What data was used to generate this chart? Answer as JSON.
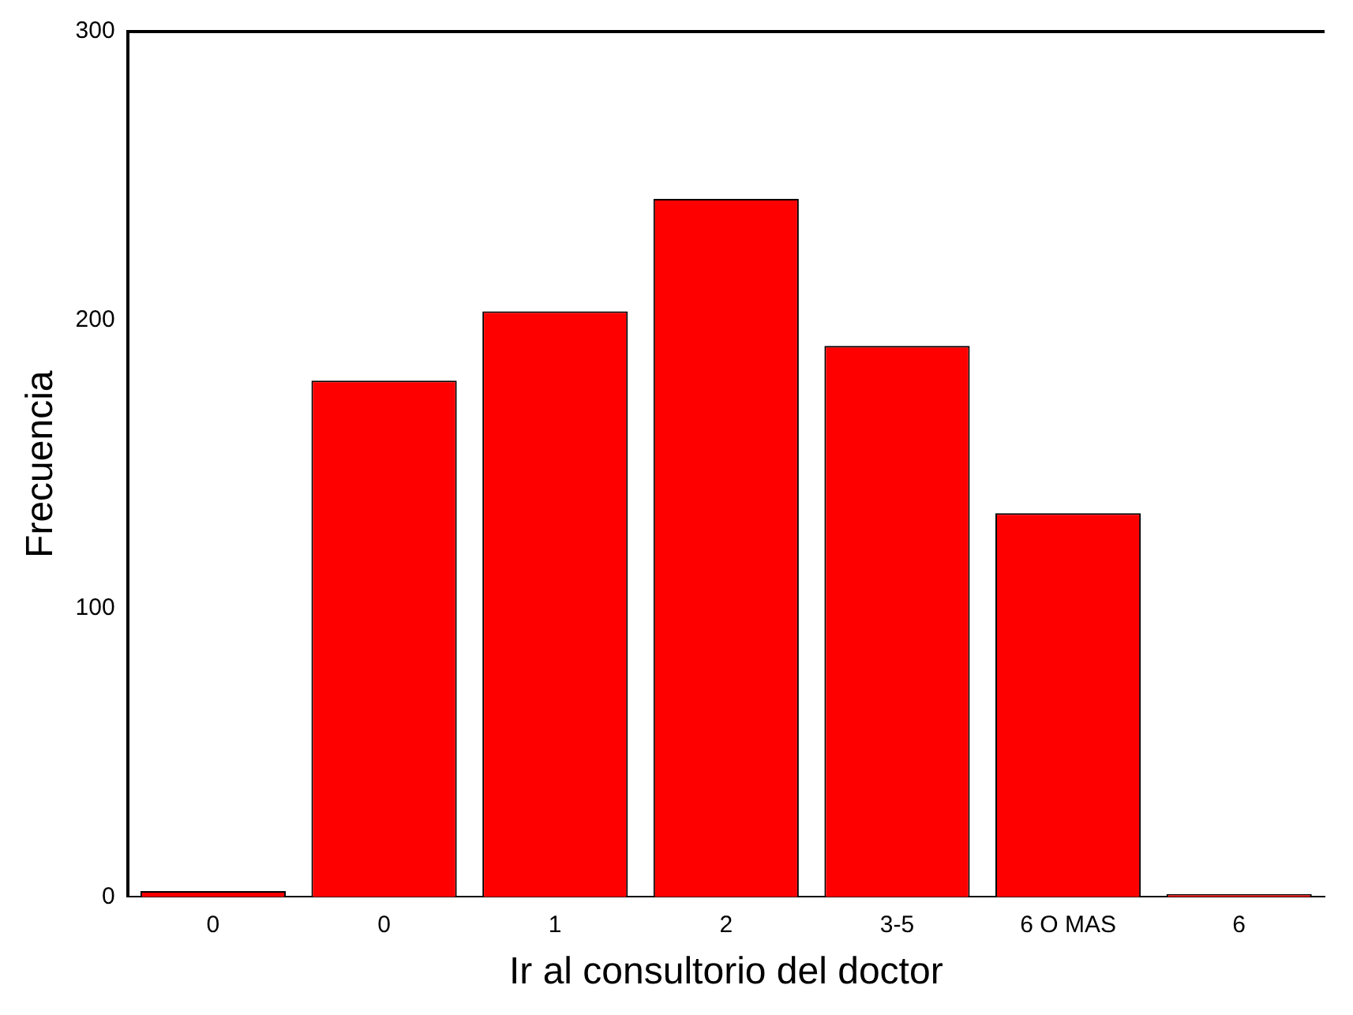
{
  "chart_data": {
    "type": "bar",
    "xlabel": "Ir al consultorio del doctor",
    "ylabel": "Frecuencia",
    "categories": [
      "0",
      "0",
      "1",
      "2",
      "3-5",
      "6 O MAS",
      "6"
    ],
    "values": [
      2,
      179,
      203,
      242,
      191,
      133,
      1
    ],
    "color": "#ff0000",
    "ylim": [
      0,
      300
    ],
    "yticks": [
      0,
      100,
      200,
      300
    ],
    "grid": false,
    "legend": false
  }
}
